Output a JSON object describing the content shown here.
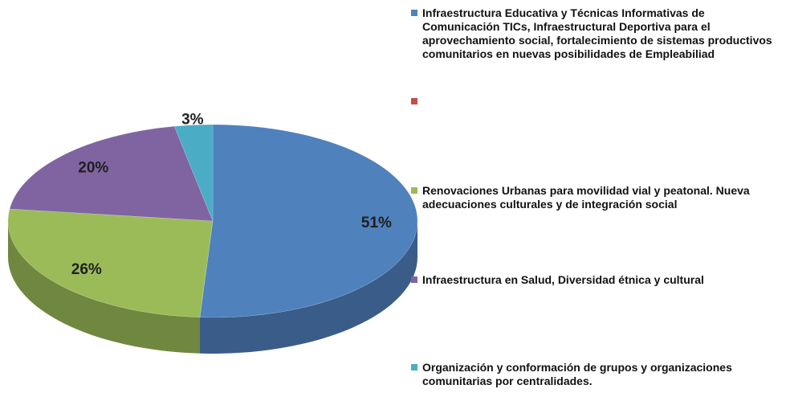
{
  "chart_data": {
    "type": "pie",
    "categories": [
      "Infraestructura Educativa y Técnicas Informativas de Comunicación TICs, Infraestructural Deportiva para el aprovechamiento social, fortalecimiento de sistemas productivos comunitarios en nuevas posibilidades de Empleabiliad",
      null,
      "Renovaciones Urbanas para movilidad vial y peatonal. Nueva adecuaciones culturales y de integración social",
      "Infraestructura en Salud,  Diversidad étnica y cultural",
      "Organización y conformación de grupos y organizaciones comunitarias por centralidades."
    ],
    "values": [
      51,
      0,
      26,
      20,
      3
    ],
    "value_labels": [
      "51%",
      null,
      "26%",
      "20%",
      "3%"
    ],
    "colors": [
      "#4f81bd",
      "#c0504d",
      "#9bbb59",
      "#8064a2",
      "#4bacc6"
    ],
    "legend": "right"
  }
}
